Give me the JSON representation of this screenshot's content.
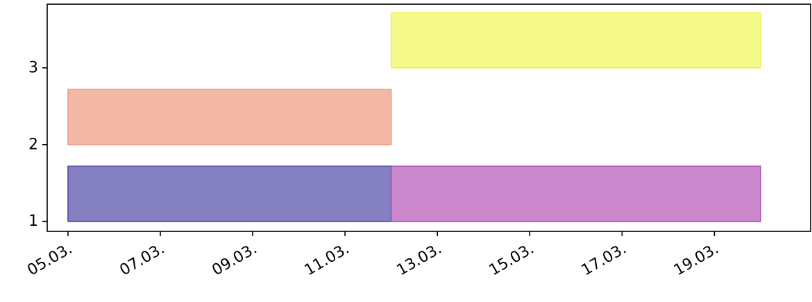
{
  "chart_data": {
    "type": "bar",
    "orientation": "horizontal",
    "x_axis": "date",
    "y_axis": "numeric",
    "xlim": [
      "2023-03-04T13:12",
      "2023-03-21T02:00"
    ],
    "ylim": [
      0.87,
      3.83
    ],
    "x_ticks": [
      {
        "date": "2023-03-05",
        "label": "05.03."
      },
      {
        "date": "2023-03-07",
        "label": "07.03."
      },
      {
        "date": "2023-03-09",
        "label": "09.03."
      },
      {
        "date": "2023-03-11",
        "label": "11.03."
      },
      {
        "date": "2023-03-13",
        "label": "13.03."
      },
      {
        "date": "2023-03-15",
        "label": "15.03."
      },
      {
        "date": "2023-03-17",
        "label": "17.03."
      },
      {
        "date": "2023-03-19",
        "label": "19.03."
      }
    ],
    "y_ticks": [
      {
        "value": 1,
        "label": "1"
      },
      {
        "value": 2,
        "label": "2"
      },
      {
        "value": 3,
        "label": "3"
      }
    ],
    "bars": [
      {
        "start": "2023-03-05",
        "end": "2023-03-12",
        "y": 1,
        "height": 0.72,
        "fill": "#8480c2",
        "stroke": "#4b44a6"
      },
      {
        "start": "2023-03-12",
        "end": "2023-03-20",
        "y": 1,
        "height": 0.72,
        "fill": "#cb87cc",
        "stroke": "#a14db3"
      },
      {
        "start": "2023-03-05",
        "end": "2023-03-12",
        "y": 2,
        "height": 0.72,
        "fill": "#f4b8a7",
        "stroke": "#ec9c86"
      },
      {
        "start": "2023-03-12",
        "end": "2023-03-20",
        "y": 3,
        "height": 0.72,
        "fill": "#f5f98a",
        "stroke": "#ecef5a"
      }
    ],
    "grid": false,
    "legend": "none",
    "title": "",
    "xlabel": "",
    "ylabel": ""
  }
}
